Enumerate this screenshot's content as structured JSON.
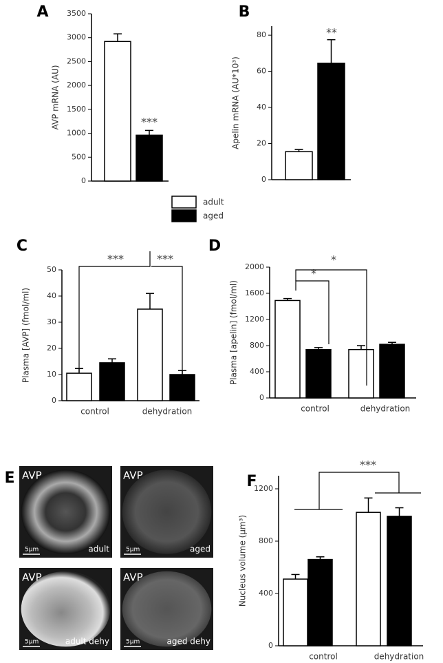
{
  "chart_data": [
    {
      "type": "bar",
      "panel": "A",
      "y_label": "AVP mRNA (AU)",
      "categories": [
        null
      ],
      "series": [
        {
          "name": "adult",
          "color": "#ffffff",
          "values": [
            2920
          ],
          "errors": [
            160
          ]
        },
        {
          "name": "aged",
          "color": "#000000",
          "values": [
            960
          ],
          "errors": [
            100
          ]
        }
      ],
      "ylim": [
        0,
        3500
      ],
      "yticks": [
        0,
        500,
        1000,
        1500,
        2000,
        2500,
        3000,
        3500
      ],
      "annotations": [
        "***"
      ]
    },
    {
      "type": "bar",
      "panel": "B",
      "y_label": "Apelin mRNA (AU*10³)",
      "categories": [
        null
      ],
      "series": [
        {
          "color": "#ffffff",
          "values": [
            15.5
          ],
          "errors": [
            1.2
          ]
        },
        {
          "color": "#000000",
          "values": [
            64.5
          ],
          "errors": [
            13
          ]
        }
      ],
      "ylim": [
        0,
        85
      ],
      "yticks": [
        0,
        20,
        40,
        60,
        80
      ],
      "annotations": [
        "**"
      ]
    },
    {
      "type": "bar",
      "panel": "C",
      "y_label": "Plasma [AVP] (fmol/ml)",
      "categories": [
        "control",
        "dehydration"
      ],
      "series": [
        {
          "color": "#ffffff",
          "values": [
            10.5,
            35
          ],
          "errors": [
            1.8,
            6
          ]
        },
        {
          "color": "#000000",
          "values": [
            14.5,
            10
          ],
          "errors": [
            1.5,
            1.5
          ]
        }
      ],
      "ylim": [
        0,
        50
      ],
      "yticks": [
        0,
        10,
        20,
        30,
        40,
        50
      ],
      "annotations": [
        "***",
        "***"
      ]
    },
    {
      "type": "bar",
      "panel": "D",
      "y_label": "Plasma [apelin] (fmol/ml)",
      "categories": [
        "control",
        "dehydration"
      ],
      "series": [
        {
          "color": "#ffffff",
          "values": [
            1490,
            740
          ],
          "errors": [
            30,
            60
          ]
        },
        {
          "color": "#000000",
          "values": [
            740,
            820
          ],
          "errors": [
            30,
            30
          ]
        }
      ],
      "ylim": [
        0,
        2000
      ],
      "yticks": [
        0,
        400,
        800,
        1200,
        1600,
        2000
      ],
      "annotations": [
        "*",
        "*"
      ]
    },
    {
      "type": "bar",
      "panel": "F",
      "y_label": "Nucleus volume (µm³)",
      "categories": [
        "control",
        "dehydration"
      ],
      "series": [
        {
          "color": "#ffffff",
          "values": [
            510,
            1020
          ],
          "errors": [
            35,
            110
          ]
        },
        {
          "color": "#000000",
          "values": [
            660,
            990
          ],
          "errors": [
            20,
            65
          ]
        }
      ],
      "ylim": [
        0,
        1300
      ],
      "yticks": [
        0,
        400,
        800,
        1200
      ],
      "annotations": [
        "***"
      ]
    }
  ],
  "micrographs": {
    "panel": "E",
    "images": [
      {
        "stain": "AVP",
        "label": "adult",
        "scale": "5µm"
      },
      {
        "stain": "AVP",
        "label": "aged",
        "scale": "5µm"
      },
      {
        "stain": "AVP",
        "label": "adult dehy",
        "scale": "5µm"
      },
      {
        "stain": "AVP",
        "label": "aged dehy",
        "scale": "5µm"
      }
    ]
  }
}
